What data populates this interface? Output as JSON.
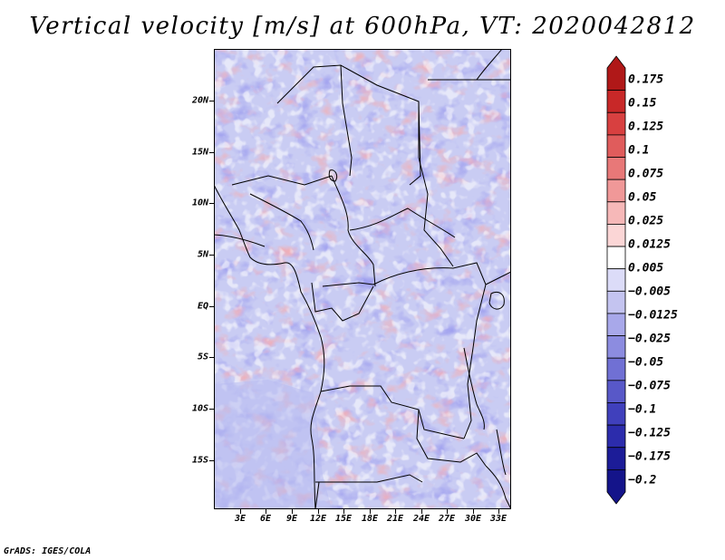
{
  "title": "Vertical velocity [m/s] at 600hPa, VT: 2020042812",
  "credit": "GrADS: IGES/COLA",
  "lat_labels": [
    "20N",
    "15N",
    "10N",
    "5N",
    "EQ",
    "5S",
    "10S",
    "15S"
  ],
  "lon_labels": [
    "3E",
    "6E",
    "9E",
    "12E",
    "15E",
    "18E",
    "21E",
    "24E",
    "27E",
    "30E",
    "33E"
  ],
  "map_extent": {
    "lon_min": 0.5,
    "lon_max": 34.5,
    "lat_min": -20,
    "lat_max": 24.5
  },
  "colorbar": {
    "labels": [
      "0.175",
      "0.15",
      "0.125",
      "0.1",
      "0.075",
      "0.05",
      "0.025",
      "0.0125",
      "0.005",
      "−0.005",
      "−0.0125",
      "−0.025",
      "−0.05",
      "−0.075",
      "−0.1",
      "−0.125",
      "−0.175",
      "−0.2"
    ],
    "colors": [
      "#b01818",
      "#c82828",
      "#d84040",
      "#e05c5c",
      "#e87878",
      "#f09898",
      "#f6b8b8",
      "#fbd6d6",
      "#ffffff",
      "#dcdcf8",
      "#c4c4f0",
      "#a8a8ea",
      "#8c8ce0",
      "#7070d4",
      "#5858c8",
      "#4040bc",
      "#2c2cac",
      "#1c1c98",
      "#14148a"
    ]
  }
}
